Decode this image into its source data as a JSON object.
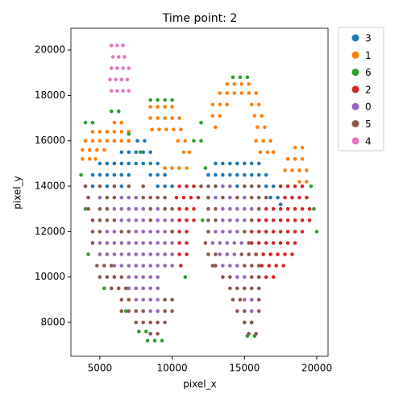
{
  "chart_data": {
    "type": "scatter",
    "title": "Time point: 2",
    "x_label": "pixel_x",
    "y_label": "pixel_y",
    "xlim": [
      3000,
      20780
    ],
    "ylim": [
      6510,
      20960
    ],
    "xticks": [
      5000,
      10000,
      15000,
      20000
    ],
    "yticks": [
      8000,
      10000,
      12000,
      14000,
      16000,
      18000,
      20000
    ],
    "grid": false,
    "legend": "outside-right",
    "series": [
      {
        "name": "3",
        "color": "#1f77b4",
        "x": [
          7600,
          8100,
          6500,
          7000,
          7500,
          8000,
          8500,
          5000,
          5500,
          6000,
          6500,
          7000,
          7500,
          8000,
          8500,
          9000,
          4500,
          5000,
          5500,
          6000,
          6500,
          7000,
          8500,
          9000,
          9500,
          4500,
          5500,
          6500,
          9000,
          9500,
          10000,
          13000,
          13500,
          14000,
          14500,
          15000,
          15500,
          16000,
          12500,
          13000,
          13500,
          14000,
          14500,
          15000,
          15500,
          16000,
          16500,
          13000,
          14500,
          16500,
          17000,
          16800,
          17300,
          17500
        ],
        "values": [
          16000,
          16000,
          15500,
          15500,
          15500,
          15500,
          15500,
          15000,
          15000,
          15000,
          15000,
          15000,
          15000,
          15000,
          15000,
          15000,
          14500,
          14500,
          14500,
          14500,
          14500,
          14500,
          14500,
          14500,
          14500,
          14000,
          14000,
          14000,
          14000,
          14000,
          14000,
          15000,
          15000,
          15000,
          15000,
          15000,
          15000,
          15000,
          14500,
          14500,
          14500,
          14500,
          14500,
          14500,
          14500,
          14500,
          14500,
          14000,
          14000,
          14000,
          14000,
          13500,
          13500,
          13200
        ]
      },
      {
        "name": "1",
        "color": "#ff7f0e",
        "x": [
          6000,
          6500,
          4500,
          5000,
          5500,
          6000,
          6500,
          7000,
          4000,
          4500,
          5000,
          5500,
          6000,
          6500,
          7000,
          3800,
          4300,
          4800,
          5300,
          3800,
          4300,
          4700,
          8500,
          9000,
          9500,
          10000,
          8500,
          9000,
          9500,
          10000,
          10500,
          8600,
          9100,
          9600,
          10100,
          10600,
          10400,
          10900,
          10800,
          11200,
          9500,
          10000,
          10500,
          11000,
          13800,
          14300,
          14800,
          15300,
          13300,
          13800,
          14300,
          14800,
          15300,
          15800,
          12800,
          13300,
          13800,
          15500,
          16000,
          12800,
          13300,
          15700,
          16200,
          13000,
          15900,
          16400,
          15800,
          16300,
          16800,
          16100,
          16600,
          17000,
          18500,
          19000,
          18000,
          18500,
          19000,
          17800,
          18300,
          18800,
          19300,
          18800,
          19300
        ],
        "values": [
          16800,
          16800,
          16400,
          16400,
          16400,
          16400,
          16400,
          16400,
          16000,
          16000,
          16000,
          16000,
          16000,
          16000,
          16000,
          15600,
          15600,
          15600,
          15600,
          15200,
          15200,
          15200,
          17500,
          17500,
          17500,
          17500,
          17000,
          17000,
          17000,
          17000,
          17000,
          16500,
          16500,
          16500,
          16500,
          16500,
          16000,
          16000,
          15500,
          15500,
          14800,
          14800,
          14800,
          14800,
          18500,
          18500,
          18500,
          18500,
          18100,
          18100,
          18100,
          18100,
          18100,
          18100,
          17600,
          17600,
          17600,
          17600,
          17600,
          17100,
          17100,
          17100,
          17100,
          16600,
          16600,
          16600,
          16000,
          16000,
          16000,
          15500,
          15500,
          15500,
          15700,
          15700,
          15200,
          15200,
          15200,
          14700,
          14700,
          14700,
          14700,
          14200,
          14200
        ]
      },
      {
        "name": "6",
        "color": "#2ca02c",
        "x": [
          14200,
          14700,
          15200,
          8500,
          9000,
          9500,
          10000,
          5800,
          6300,
          4000,
          4500,
          12000,
          3700,
          4000,
          4200,
          5300,
          6800,
          7700,
          8200,
          8300,
          8800,
          9300,
          12300,
          12500,
          12100,
          10900,
          12000,
          11500,
          15000,
          15500,
          15200,
          15700,
          20000,
          19800,
          19600,
          7000,
          7800
        ],
        "values": [
          18800,
          18800,
          18800,
          17800,
          17800,
          17800,
          17800,
          17300,
          17300,
          16800,
          16800,
          16800,
          14500,
          13000,
          11000,
          9500,
          8500,
          7600,
          7600,
          7200,
          7200,
          7200,
          14800,
          13500,
          12500,
          10000,
          16000,
          16000,
          8000,
          8000,
          7400,
          7400,
          12000,
          13000,
          14000,
          16300,
          15500
        ]
      },
      {
        "name": "2",
        "color": "#d62728",
        "x": [
          10500,
          11000,
          11500,
          10300,
          10800,
          11300,
          11800,
          10500,
          11000,
          11500,
          10500,
          11000,
          11500,
          10000,
          10500,
          11000,
          10500,
          11000,
          10500,
          11000,
          10600,
          17500,
          18000,
          18500,
          19000,
          17800,
          18300,
          18800,
          19300,
          16500,
          17000,
          17500,
          18000,
          18500,
          19000,
          19500,
          16000,
          16500,
          17000,
          17500,
          18000,
          18500,
          19000,
          19500,
          15500,
          16000,
          16500,
          17000,
          17500,
          18000,
          18500,
          19000,
          15500,
          16000,
          16500,
          17000,
          17500,
          18000,
          18500,
          15800,
          16300,
          16800,
          17300,
          17800,
          18300,
          16200,
          16700,
          17200,
          17700,
          16000,
          16500,
          17000
        ],
        "values": [
          14000,
          14000,
          14000,
          13500,
          13500,
          13500,
          13500,
          13000,
          13000,
          13000,
          12500,
          12500,
          12500,
          12000,
          12000,
          12000,
          11500,
          11500,
          11000,
          11000,
          10500,
          14000,
          14000,
          14000,
          14000,
          13500,
          13500,
          13500,
          13500,
          13000,
          13000,
          13000,
          13000,
          13000,
          13000,
          13000,
          12500,
          12500,
          12500,
          12500,
          12500,
          12500,
          12500,
          12500,
          12000,
          12000,
          12000,
          12000,
          12000,
          12000,
          12000,
          12000,
          11500,
          11500,
          11500,
          11500,
          11500,
          11500,
          11500,
          11000,
          11000,
          11000,
          11000,
          11000,
          11000,
          10500,
          10500,
          10500,
          10500,
          10000,
          10000,
          10000
        ]
      },
      {
        "name": "0",
        "color": "#9467bd",
        "x": [
          5000,
          6500,
          7000,
          7500,
          6000,
          6500,
          7000,
          7500,
          8000,
          9000,
          6500,
          7000,
          7500,
          8000,
          9000,
          9500,
          10000,
          5500,
          6000,
          7500,
          8000,
          8500,
          9000,
          9500,
          5000,
          5500,
          6000,
          6500,
          7000,
          7500,
          8000,
          8500,
          9000,
          9500,
          10000,
          5000,
          5500,
          6000,
          6500,
          7000,
          7500,
          8000,
          8500,
          9000,
          9500,
          10000,
          6000,
          6500,
          7000,
          7500,
          8000,
          8500,
          9000,
          9500,
          10000,
          7000,
          7500,
          8000,
          8500,
          9000,
          7000,
          7500,
          8000,
          8500,
          9000,
          7500,
          8000,
          8500,
          9000,
          8500,
          9000,
          13500,
          14000,
          13000,
          14000,
          15000,
          13500,
          14000,
          14500,
          15000,
          15500,
          13500,
          14000,
          14500,
          15000,
          13000,
          13500,
          14000,
          14500,
          12800,
          13300,
          13800,
          14300,
          14800,
          13300,
          13800,
          14300,
          13500,
          14000,
          14500,
          14500,
          15000,
          15000,
          15500,
          15500
        ],
        "values": [
          13500,
          13500,
          13500,
          13500,
          13000,
          13000,
          13000,
          13000,
          13000,
          13000,
          12500,
          12500,
          12500,
          12500,
          12500,
          12500,
          12500,
          12000,
          12000,
          12000,
          12000,
          12000,
          12000,
          12000,
          11500,
          11500,
          11500,
          11500,
          11500,
          11500,
          11500,
          11500,
          11500,
          11500,
          11500,
          11000,
          11000,
          11000,
          11000,
          11000,
          11000,
          11000,
          11000,
          11000,
          11000,
          11000,
          10500,
          10500,
          10500,
          10500,
          10500,
          10500,
          10500,
          10500,
          10500,
          10000,
          10000,
          10000,
          10000,
          10000,
          9500,
          9500,
          9500,
          9500,
          9500,
          9000,
          9000,
          9000,
          9000,
          8500,
          8500,
          14000,
          14000,
          13500,
          13500,
          13500,
          13000,
          13000,
          13000,
          13000,
          13000,
          12500,
          12500,
          12500,
          12500,
          12000,
          12000,
          12000,
          12000,
          11500,
          11500,
          11500,
          11500,
          11500,
          11000,
          11000,
          11000,
          10500,
          10500,
          10500,
          10000,
          10000,
          9000,
          9000,
          8500
        ]
      },
      {
        "name": "5",
        "color": "#8c564b",
        "x": [
          4000,
          5000,
          6000,
          7000,
          8000,
          4200,
          5500,
          6000,
          8000,
          8500,
          9000,
          9500,
          4200,
          5000,
          5500,
          8500,
          9500,
          10000,
          4500,
          5000,
          5500,
          6000,
          8500,
          4500,
          5000,
          6500,
          7000,
          10000,
          4500,
          4800,
          5300,
          5800,
          5000,
          5500,
          6000,
          6500,
          5800,
          6300,
          6800,
          6500,
          7000,
          9500,
          10000,
          6500,
          7000,
          7500,
          8000,
          9500,
          10000,
          7500,
          8000,
          8500,
          9000,
          9500,
          8500,
          9000,
          12000,
          12500,
          13000,
          15000,
          15500,
          16000,
          12500,
          13500,
          14500,
          15500,
          16000,
          16500,
          12500,
          13000,
          16000,
          12500,
          13000,
          15500,
          12500,
          15000,
          12300,
          15300,
          12500,
          13000,
          14800,
          15300,
          15800,
          12800,
          13000,
          15000,
          15500,
          16000,
          13500,
          14000,
          15500,
          16000,
          14000,
          14500,
          15000,
          15500,
          16000,
          14200,
          14700,
          16000,
          14500,
          15000,
          16000,
          15000,
          15500,
          15300,
          15800
        ],
        "values": [
          14000,
          14000,
          14000,
          14000,
          14000,
          13500,
          13500,
          13500,
          13500,
          13500,
          13500,
          13500,
          13000,
          13000,
          13000,
          13000,
          13000,
          13000,
          12500,
          12500,
          12500,
          12500,
          12500,
          12000,
          12000,
          12000,
          12000,
          12000,
          11500,
          10500,
          10500,
          10500,
          10000,
          10000,
          10000,
          10000,
          9500,
          9500,
          9500,
          9000,
          9000,
          9000,
          9000,
          8500,
          8500,
          8500,
          8500,
          8500,
          8500,
          8000,
          8000,
          8000,
          8000,
          8000,
          7500,
          7500,
          14000,
          14000,
          14000,
          14000,
          14000,
          14000,
          13500,
          13500,
          13500,
          13500,
          13500,
          13500,
          13000,
          13000,
          13000,
          12500,
          12500,
          12500,
          12000,
          12000,
          11500,
          11500,
          11000,
          11000,
          11000,
          11000,
          11000,
          10500,
          10500,
          10500,
          10500,
          10500,
          10000,
          10000,
          10000,
          10000,
          9500,
          9500,
          9500,
          9500,
          9500,
          9000,
          9000,
          9000,
          8500,
          8500,
          8500,
          8000,
          8000,
          7500,
          7500
        ]
      },
      {
        "name": "4",
        "color": "#e377c2",
        "x": [
          5800,
          6200,
          6600,
          5900,
          6300,
          6700,
          5800,
          6200,
          6600,
          7000,
          5700,
          6100,
          6500,
          6900,
          5800,
          6200,
          6600,
          7000
        ],
        "values": [
          20200,
          20200,
          20200,
          19700,
          19700,
          19700,
          19200,
          19200,
          19200,
          19200,
          18700,
          18700,
          18700,
          18700,
          18200,
          18200,
          18200,
          18200
        ]
      }
    ]
  }
}
